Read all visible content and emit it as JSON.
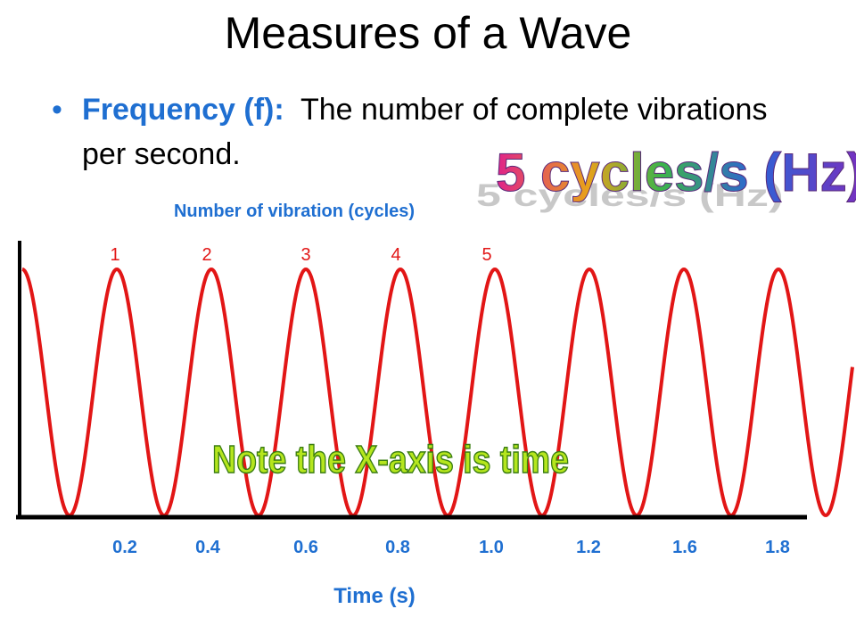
{
  "slide": {
    "title": "Measures of a Wave",
    "bullet_term": "Frequency (f):",
    "bullet_text": "The number of complete vibrations per second.",
    "hz_callout": "5 cycles/s (Hz)",
    "note_callout": "Note the X-axis is time"
  },
  "colors": {
    "wave": "#e21616",
    "accent_blue": "#1f6fd1",
    "axis": "#000000"
  },
  "chart_data": {
    "type": "line",
    "title": "",
    "top_label": "Number of vibration (cycles)",
    "xlabel": "Time (s)",
    "cycle_numbers": [
      "1",
      "2",
      "3",
      "4",
      "5"
    ],
    "x_tick_labels": [
      "0.2",
      "0.4",
      "0.6",
      "0.8",
      "1.0",
      "1.2",
      "1.6",
      "1.8"
    ],
    "frequency_hz": 5,
    "cycles_shown": 8.5,
    "series": [
      {
        "color": "#e21616",
        "shape": "periodic-wave"
      }
    ],
    "grid": false
  }
}
